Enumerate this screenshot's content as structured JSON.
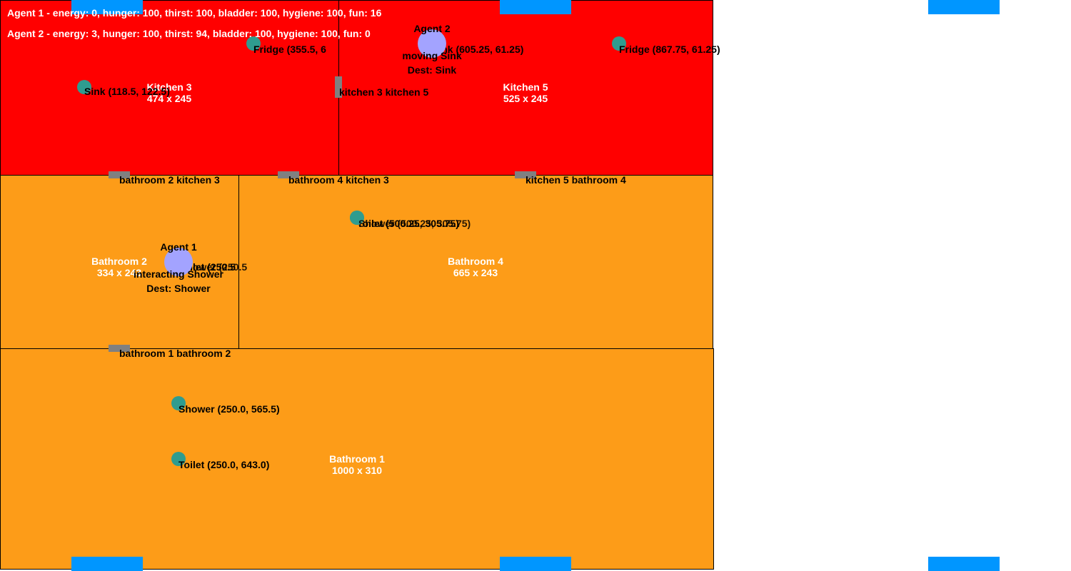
{
  "colors": {
    "kitchen": "#ff0000",
    "bathroom": "#fd9c18",
    "door": "#808080",
    "object": "#2f9c8f",
    "agent": "#a3a3ff",
    "spawn": "#0096ff"
  },
  "status": {
    "agent1": "Agent 1 - energy: 0, hunger: 100, thirst: 100, bladder: 100, hygiene: 100, fun: 16",
    "agent2": "Agent 2 - energy: 3, hunger: 100, thirst: 94, bladder: 100, hygiene: 100, fun: 0"
  },
  "rooms": {
    "kitchen3": {
      "name": "Kitchen 3",
      "size": "474 x 245"
    },
    "kitchen5": {
      "name": "Kitchen 5",
      "size": "525 x 245"
    },
    "bathroom2": {
      "name": "Bathroom 2",
      "size": "334 x 243"
    },
    "bathroom4": {
      "name": "Bathroom 4",
      "size": "665 x 243"
    },
    "bathroom1": {
      "name": "Bathroom 1",
      "size": "1000 x 310"
    }
  },
  "doors": {
    "k3_k5": "kitchen 3 kitchen 5",
    "b2_k3": "bathroom 2 kitchen 3",
    "b4_k3": "bathroom 4 kitchen 3",
    "k5_b4": "kitchen 5 bathroom 4",
    "b1_b2": "bathroom 1 bathroom 2"
  },
  "objects": {
    "fridge_k3": "Fridge (355.5, 6",
    "sink_k3": "Sink (118.5, 122.5)",
    "sink_k5": "Sink (605.25, 61.25)",
    "fridge_k5": "Fridge (867.75, 61.25)",
    "toilet_b4": "Toilet (500.25, 305.75)",
    "shower_b4": "Shower (500.25, 305.75)",
    "toilet_b2": "Toilet (250.5",
    "shower_b2": "Shower (250.5",
    "shower_b1": "Shower (250.0, 565.5)",
    "toilet_b1": "Toilet (250.0, 643.0)"
  },
  "agents": {
    "agent1": {
      "name": "Agent 1",
      "state": "interacting Shower",
      "dest": "Dest: Shower"
    },
    "agent2": {
      "name": "Agent 2",
      "state": "moving Sink",
      "dest": "Dest: Sink"
    }
  }
}
